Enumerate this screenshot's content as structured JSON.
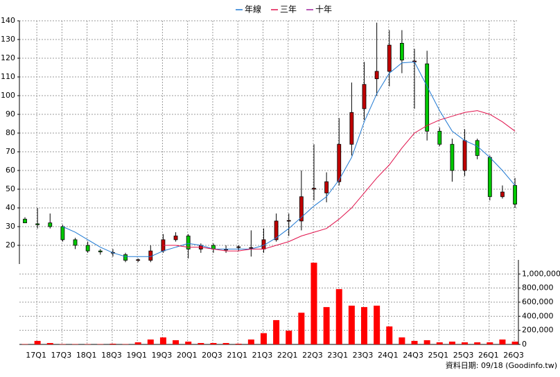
{
  "chart_data": {
    "type": "candlestick",
    "categories": [
      null,
      "17Q1",
      null,
      "17Q3",
      null,
      "18Q1",
      null,
      "18Q3",
      null,
      "19Q1",
      null,
      "19Q3",
      null,
      "20Q1",
      null,
      "20Q3",
      null,
      "21Q1",
      null,
      "21Q3",
      null,
      "22Q1",
      null,
      "22Q3",
      null,
      "23Q1",
      null,
      "23Q3",
      null,
      "24Q1",
      null,
      "24Q3",
      null,
      "25Q1",
      null,
      "25Q3",
      null,
      "26Q1",
      null,
      "26Q3"
    ],
    "open": [
      34,
      31.5,
      32,
      30,
      23,
      20,
      17,
      16,
      15,
      12,
      12,
      17,
      23,
      25,
      18,
      20,
      17.5,
      19,
      18.5,
      18,
      23,
      33,
      33,
      50,
      48,
      54,
      74,
      93,
      109,
      113,
      128,
      118,
      117,
      81,
      74,
      60,
      76,
      67,
      46,
      52
    ],
    "high": [
      35,
      40,
      37,
      31,
      24,
      22,
      18,
      18,
      16,
      13,
      20,
      26,
      27,
      26,
      21,
      21,
      20,
      20,
      28,
      29,
      37,
      37,
      60,
      74,
      59,
      88,
      107,
      118,
      139,
      135,
      135,
      125,
      124,
      83,
      77,
      82,
      77,
      68,
      52,
      56
    ],
    "low": [
      32,
      29,
      29,
      22,
      18,
      16,
      15,
      14,
      11,
      11,
      11,
      16,
      22,
      13,
      16,
      16,
      16,
      17,
      14,
      16,
      22,
      25,
      28,
      44,
      43,
      52,
      68,
      87,
      100,
      105,
      112,
      93,
      76,
      73,
      54,
      57,
      66,
      44,
      45,
      40
    ],
    "close": [
      32,
      31,
      30,
      23,
      20,
      17,
      16.5,
      16.2,
      12,
      12.3,
      17,
      23,
      25,
      18,
      20,
      18,
      18,
      19.2,
      18.8,
      23,
      33,
      33.3,
      46,
      50.5,
      54,
      74,
      91,
      106,
      113,
      127,
      119,
      118.5,
      81,
      74,
      60,
      76,
      68,
      46,
      48.5,
      42
    ],
    "up_color": "#c00000",
    "down_color": "#00c800",
    "series": [
      {
        "name": "年線",
        "color": "#1e78d2",
        "values": [
          null,
          null,
          null,
          30,
          27,
          23,
          19,
          16,
          14,
          14,
          14,
          17,
          19,
          21,
          20,
          18,
          18,
          18,
          18,
          20,
          24,
          29,
          35,
          41,
          46,
          55,
          67,
          86,
          101,
          112,
          117.5,
          118,
          105,
          92,
          81,
          76,
          73,
          67,
          60,
          52
        ]
      },
      {
        "name": "三年",
        "color": "#e0104a",
        "values": [
          null,
          null,
          null,
          null,
          null,
          null,
          null,
          null,
          null,
          null,
          null,
          20,
          20,
          19,
          19,
          18,
          17,
          17,
          18,
          18,
          20,
          22,
          25,
          27,
          29,
          34,
          40,
          48,
          56,
          63,
          72,
          80,
          84,
          87,
          89,
          91,
          92,
          90,
          86,
          81
        ]
      },
      {
        "name": "十年",
        "color": "#a0209a",
        "values": [
          null,
          null,
          null,
          null,
          null,
          null,
          null,
          null,
          null,
          null,
          null,
          null,
          null,
          null,
          null,
          null,
          null,
          null,
          null,
          null,
          null,
          null,
          null,
          null,
          null,
          null,
          null,
          null,
          null,
          null,
          null,
          null,
          null,
          null,
          null,
          null,
          null,
          null,
          null,
          null
        ]
      }
    ],
    "ylim": [
      10,
      140
    ],
    "yticks": [
      20,
      30,
      40,
      50,
      60,
      70,
      80,
      90,
      100,
      110,
      120,
      130,
      140
    ],
    "grid": true,
    "volume": {
      "color": "#ff0000",
      "values": [
        5000,
        50000,
        20000,
        5000,
        5000,
        5000,
        5000,
        10000,
        5000,
        30000,
        70000,
        100000,
        60000,
        40000,
        20000,
        20000,
        20000,
        10000,
        70000,
        160000,
        345000,
        195000,
        450000,
        1160000,
        530000,
        785000,
        550000,
        530000,
        550000,
        255000,
        100000,
        50000,
        60000,
        30000,
        40000,
        30000,
        30000,
        30000,
        70000,
        40000
      ],
      "ylim": [
        0,
        1200000
      ],
      "yticks": [
        0,
        {
          "value": 200000,
          "label": "200,000"
        },
        {
          "value": 400000,
          "label": "400,000"
        },
        {
          "value": 600000,
          "label": "600,000"
        },
        {
          "value": 800000,
          "label": "800,000"
        },
        {
          "value": 1000000,
          "label": "1,000,000"
        }
      ]
    },
    "footer": "資料日期: 09/18  (Goodinfo.tw)"
  }
}
